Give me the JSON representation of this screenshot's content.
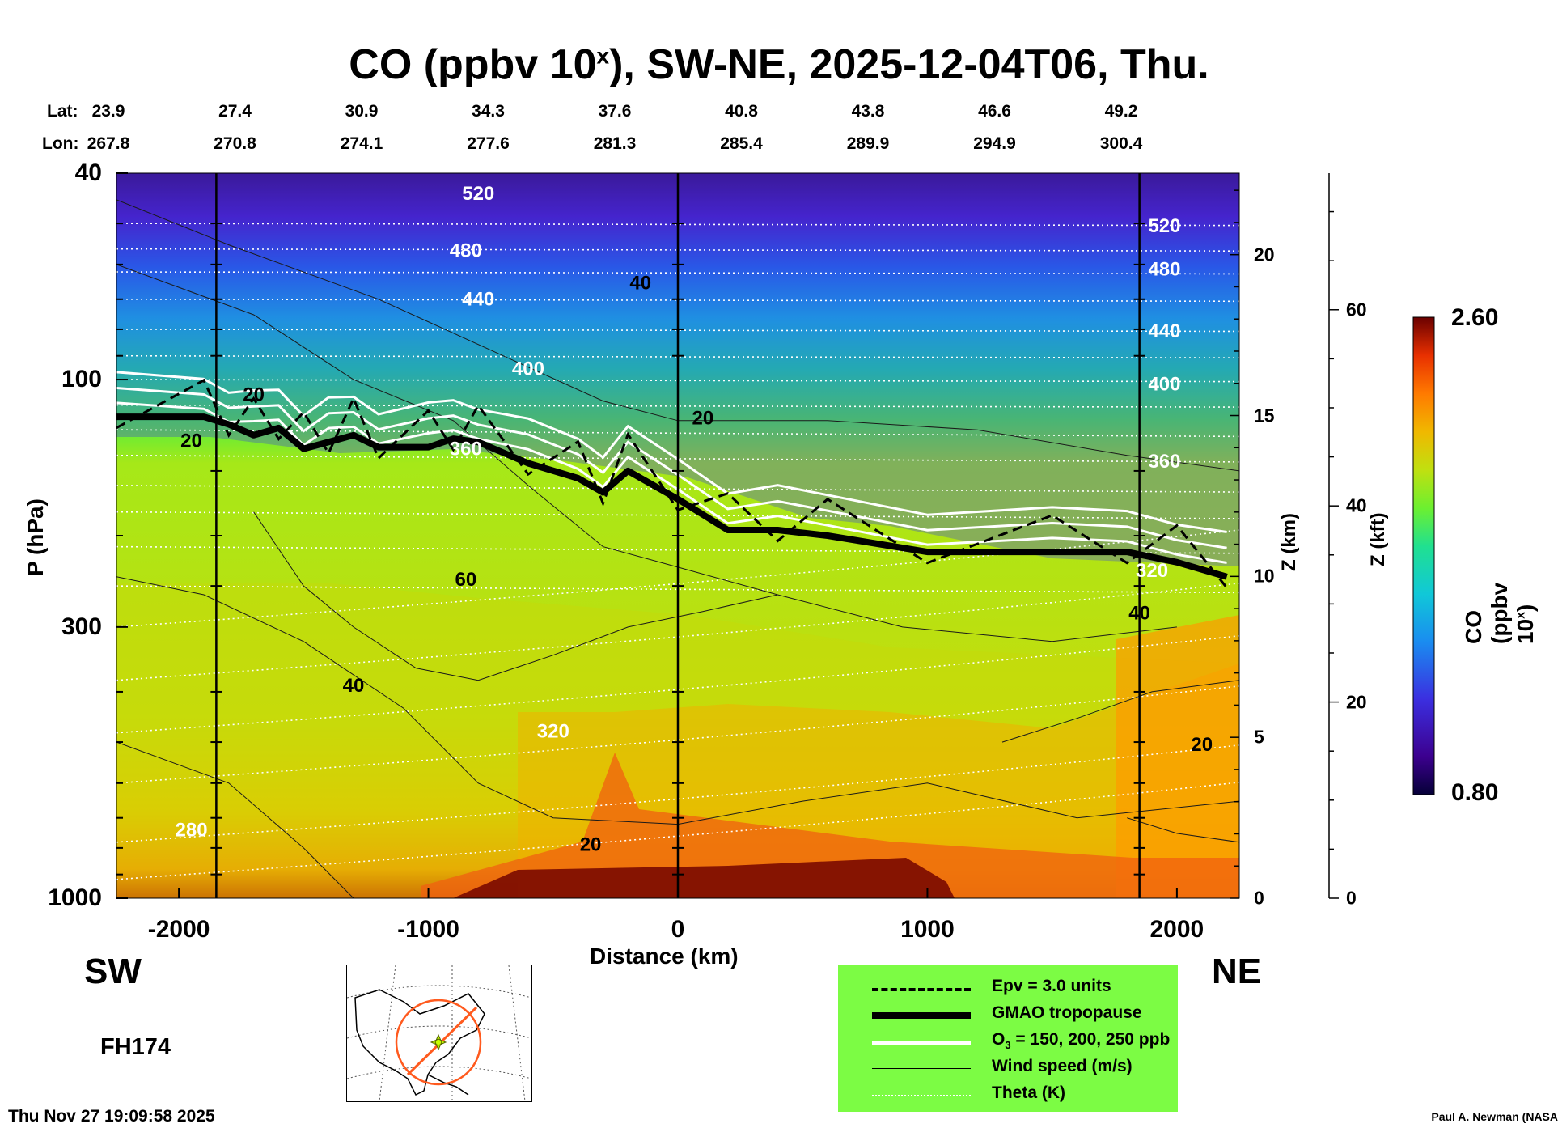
{
  "title": {
    "main": "CO (ppbv 10",
    "sup": "x",
    "rest": "), SW-NE, 2025-12-04T06, Thu."
  },
  "coords": {
    "lat_label": "Lat:",
    "lon_label": "Lon:",
    "lat": [
      "23.9",
      "27.4",
      "30.9",
      "34.3",
      "37.6",
      "40.8",
      "43.8",
      "46.6",
      "49.2"
    ],
    "lon": [
      "267.8",
      "270.8",
      "274.1",
      "277.6",
      "281.3",
      "285.4",
      "289.9",
      "294.9",
      "300.4"
    ]
  },
  "chart_data": {
    "type": "heatmap",
    "title": "CO (ppbv 10^x), SW-NE, 2025-12-04T06, Thu.",
    "xlabel": "Distance (km)",
    "ylabel": "P (hPa)",
    "xlim": [
      -2250,
      2250
    ],
    "ylim": [
      1000,
      40
    ],
    "x_ticks": [
      "-2000",
      "-1000",
      "0",
      "1000",
      "2000"
    ],
    "x_tick_values": [
      -2000,
      -1000,
      0,
      1000,
      2000
    ],
    "p_ticks": [
      "40",
      "100",
      "300",
      "1000"
    ],
    "p_tick_values": [
      40,
      100,
      300,
      1000
    ],
    "z_km_label": "Z (km)",
    "z_km_ticks": [
      "0",
      "5",
      "10",
      "15",
      "20"
    ],
    "z_kft_label": "Z (kft)",
    "z_kft_ticks": [
      "0",
      "20",
      "40",
      "60"
    ],
    "vertical_markers_km": [
      -1850,
      0,
      1850
    ],
    "colorbar": {
      "label": "CO (ppbv 10",
      "label_sup": "x",
      "label_end": ")",
      "min": "0.80",
      "max": "2.60"
    },
    "theta_contour_labels": [
      "520",
      "480",
      "440",
      "400",
      "360",
      "320",
      "280",
      "520",
      "480",
      "440",
      "400",
      "360",
      "320"
    ],
    "wind_contour_labels": [
      "20",
      "40",
      "60",
      "20",
      "40",
      "20",
      "20",
      "40",
      "20"
    ],
    "tropopause_profile": {
      "x": [
        -2250,
        -1900,
        -1800,
        -1700,
        -1600,
        -1500,
        -1400,
        -1300,
        -1200,
        -1000,
        -900,
        -800,
        -600,
        -400,
        -300,
        -200,
        0,
        200,
        400,
        600,
        1000,
        1500,
        1800,
        2000,
        2200
      ],
      "p": [
        118,
        118,
        122,
        128,
        124,
        136,
        132,
        128,
        135,
        135,
        130,
        132,
        145,
        155,
        165,
        150,
        170,
        195,
        195,
        200,
        215,
        215,
        215,
        225,
        240
      ]
    },
    "co_field_description_levels": [
      {
        "p": 40,
        "co": 0.9
      },
      {
        "p": 70,
        "co": 1.2
      },
      {
        "p": 100,
        "co": 1.5
      },
      {
        "p": 140,
        "co": 1.8
      },
      {
        "p": 300,
        "co": 1.95
      },
      {
        "p": 700,
        "co": 2.05
      },
      {
        "p": 1000,
        "co": 2.4
      }
    ]
  },
  "labels": {
    "sw": "SW",
    "ne": "NE",
    "fh": "FH174",
    "timestamp": "Thu Nov 27 19:09:58 2025",
    "credit": "Paul A. Newman (NASA"
  },
  "legend": [
    {
      "text": "Epv = 3.0 units"
    },
    {
      "text": "GMAO tropopause"
    },
    {
      "text_pre": "O",
      "text_sub": "3",
      "text_post": " = 150, 200, 250 ppb"
    },
    {
      "text": "Wind speed (m/s)"
    },
    {
      "text": "Theta (K)"
    }
  ],
  "colors": {
    "legend_bg": "#7cfc44",
    "map_track": "#ff5a1e",
    "map_marker": "#c8ff00"
  }
}
